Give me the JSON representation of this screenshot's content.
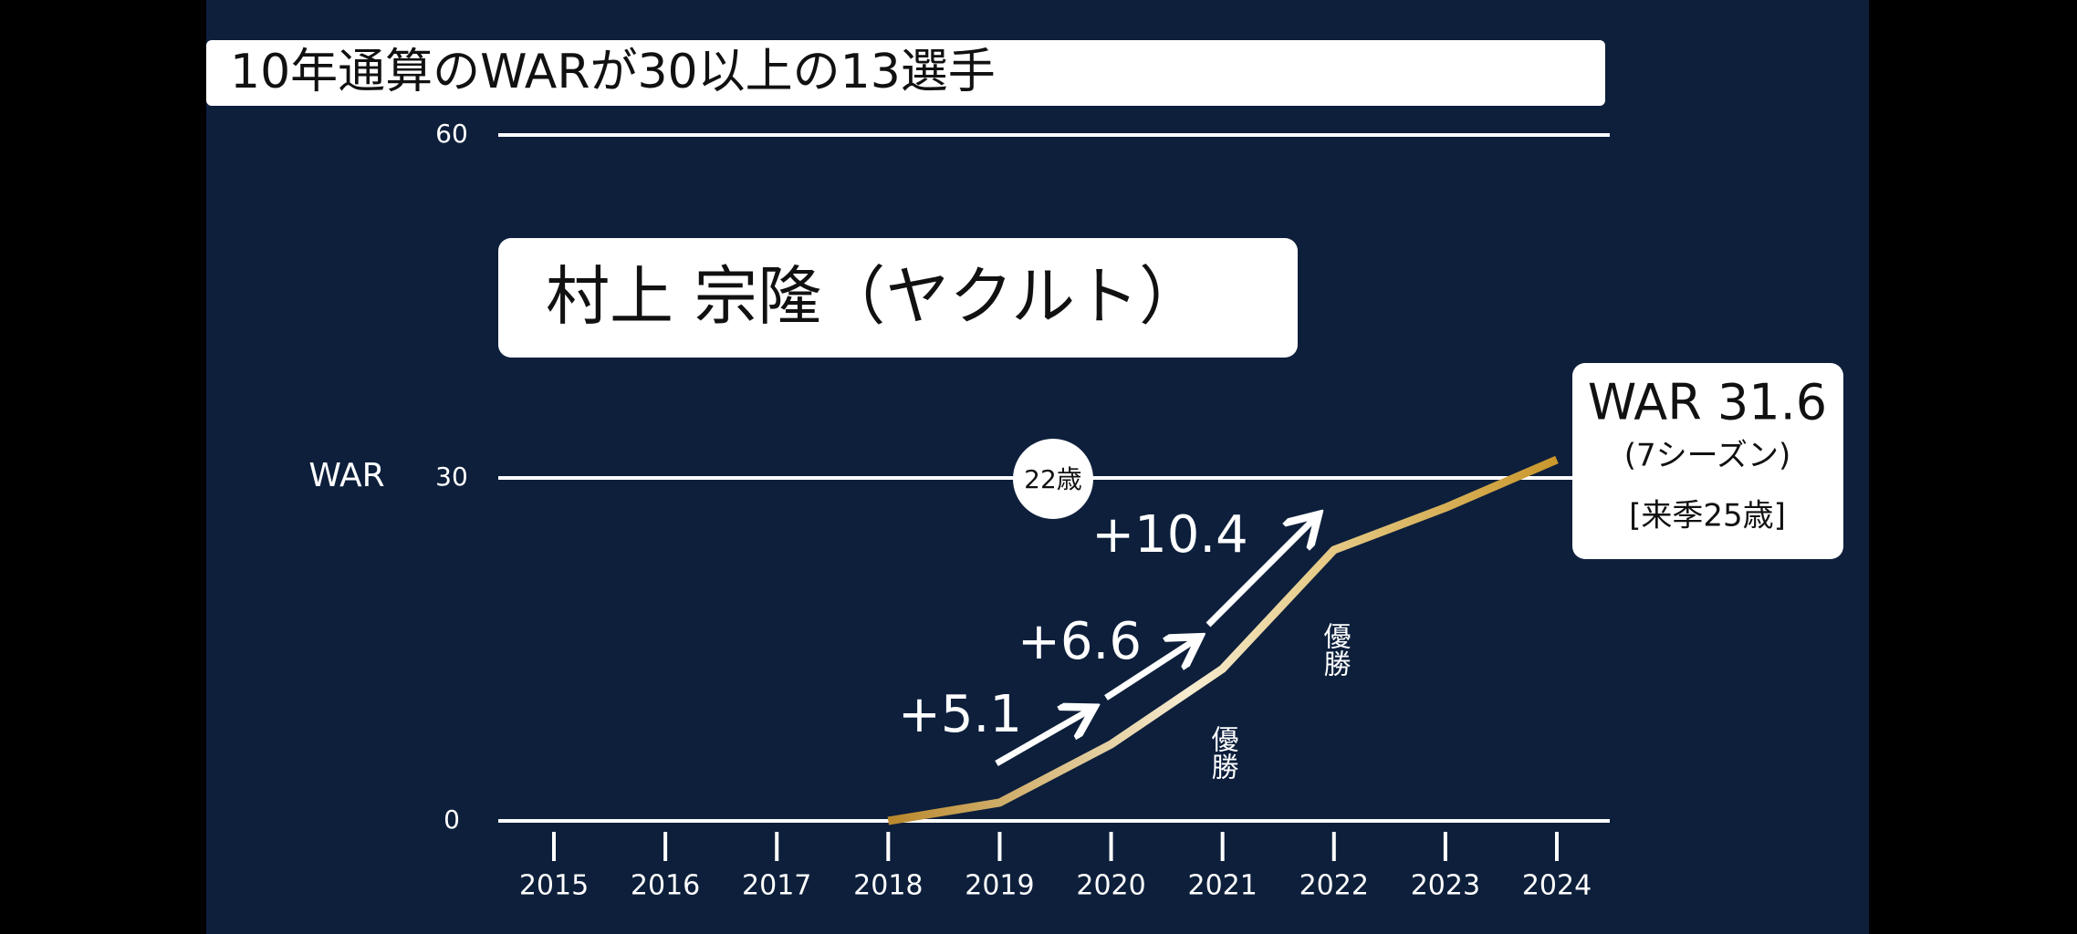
{
  "chart_data": {
    "type": "line",
    "title": "10年通算のWARが30以上の13選手",
    "ylabel": "WAR",
    "categories": [
      "2015",
      "2016",
      "2017",
      "2018",
      "2019",
      "2020",
      "2021",
      "2022",
      "2023",
      "2024"
    ],
    "series": [
      {
        "name": "村上 宗隆（ヤクルト）",
        "color": "#c9962a",
        "values": [
          null,
          null,
          null,
          0,
          1.6,
          6.7,
          13.3,
          23.7,
          27.4,
          31.6
        ]
      }
    ],
    "ylim": [
      0,
      60
    ],
    "yticks": [
      0,
      30,
      60
    ],
    "grid": true,
    "annotations": {
      "age_marker": "22歳",
      "gains": [
        "+5.1",
        "+6.6",
        "+10.4"
      ],
      "championships": [
        "優勝",
        "優勝"
      ],
      "summary": [
        "WAR 31.6",
        "(7シーズン)",
        "[来季25歳]"
      ]
    }
  }
}
